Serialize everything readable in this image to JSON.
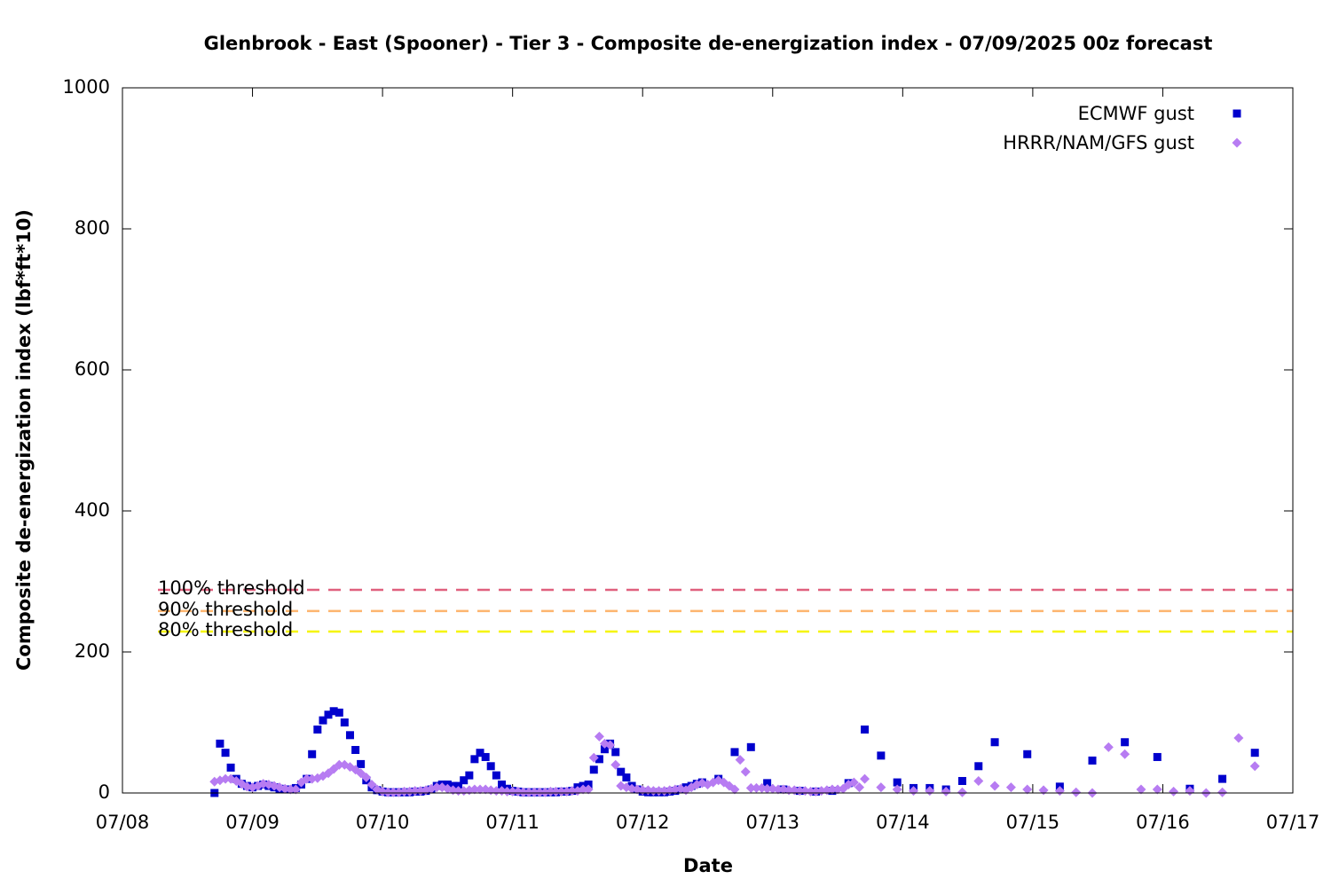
{
  "chart_data": {
    "type": "scatter",
    "title": "Glenbrook - East (Spooner) - Tier 3 - Composite de-energization index - 07/09/2025 00z forecast",
    "x_label": "Date",
    "y_label": "Composite de-energization index (lbf*ft*10)",
    "xlim": [
      8,
      17
    ],
    "xticks": [
      {
        "value": 8,
        "label": "07/08"
      },
      {
        "value": 9,
        "label": "07/09"
      },
      {
        "value": 10,
        "label": "07/10"
      },
      {
        "value": 11,
        "label": "07/11"
      },
      {
        "value": 12,
        "label": "07/12"
      },
      {
        "value": 13,
        "label": "07/13"
      },
      {
        "value": 14,
        "label": "07/14"
      },
      {
        "value": 15,
        "label": "07/15"
      },
      {
        "value": 16,
        "label": "07/16"
      },
      {
        "value": 17,
        "label": "07/17"
      }
    ],
    "ylim": [
      0,
      1000
    ],
    "yticks": [
      0,
      200,
      400,
      600,
      800,
      1000
    ],
    "legend": "upper right",
    "thresholds": [
      {
        "label": "100% threshold",
        "value": 288,
        "color": "#e0607e"
      },
      {
        "label": "90% threshold",
        "value": 258,
        "color": "#fdb56f"
      },
      {
        "label": "80% threshold",
        "value": 229,
        "color": "#f5f500"
      }
    ],
    "series": [
      {
        "name": "ECMWF gust",
        "color": "#0000cd",
        "marker": "square",
        "x": [
          8.708,
          8.75,
          8.792,
          8.833,
          8.875,
          8.917,
          8.958,
          9,
          9.042,
          9.083,
          9.125,
          9.167,
          9.208,
          9.25,
          9.292,
          9.333,
          9.375,
          9.417,
          9.458,
          9.5,
          9.542,
          9.583,
          9.625,
          9.667,
          9.708,
          9.75,
          9.792,
          9.833,
          9.875,
          9.917,
          9.958,
          10,
          10.042,
          10.083,
          10.125,
          10.167,
          10.208,
          10.25,
          10.292,
          10.333,
          10.375,
          10.417,
          10.458,
          10.5,
          10.542,
          10.583,
          10.625,
          10.667,
          10.708,
          10.75,
          10.792,
          10.833,
          10.875,
          10.917,
          10.958,
          11,
          11.042,
          11.083,
          11.125,
          11.167,
          11.208,
          11.25,
          11.292,
          11.333,
          11.375,
          11.417,
          11.458,
          11.5,
          11.542,
          11.583,
          11.625,
          11.667,
          11.708,
          11.75,
          11.792,
          11.833,
          11.875,
          11.917,
          11.958,
          12,
          12.042,
          12.083,
          12.125,
          12.167,
          12.208,
          12.25,
          12.292,
          12.333,
          12.375,
          12.417,
          12.458,
          12.583,
          12.708,
          12.833,
          12.958,
          13.083,
          13.208,
          13.333,
          13.458,
          13.583,
          13.708,
          13.833,
          13.958,
          14.083,
          14.208,
          14.333,
          14.458,
          14.583,
          14.708,
          14.958,
          15.208,
          15.458,
          15.708,
          15.958,
          16.208,
          16.458,
          16.708
        ],
        "values": [
          0,
          70,
          57,
          36,
          20,
          13,
          10,
          8,
          10,
          12,
          10,
          8,
          6,
          5,
          5,
          7,
          12,
          20,
          55,
          90,
          103,
          111,
          116,
          114,
          100,
          82,
          61,
          41,
          18,
          8,
          4,
          2,
          1,
          1,
          1,
          1,
          1,
          2,
          2,
          3,
          5,
          10,
          12,
          12,
          10,
          10,
          18,
          25,
          48,
          57,
          51,
          38,
          25,
          12,
          6,
          3,
          2,
          1,
          1,
          1,
          1,
          1,
          1,
          1,
          2,
          2,
          3,
          8,
          10,
          12,
          33,
          48,
          62,
          70,
          58,
          30,
          22,
          10,
          5,
          2,
          1,
          1,
          1,
          1,
          2,
          3,
          5,
          8,
          10,
          13,
          15,
          20,
          58,
          65,
          14,
          5,
          3,
          2,
          3,
          14,
          90,
          53,
          15,
          7,
          7,
          5,
          17,
          38,
          72,
          55,
          9,
          46,
          72,
          51,
          6,
          20,
          57
        ]
      },
      {
        "name": "HRRR/NAM/GFS gust",
        "color": "#b77cf2",
        "marker": "diamond",
        "x": [
          8.708,
          8.75,
          8.792,
          8.833,
          8.875,
          8.917,
          8.958,
          9,
          9.042,
          9.083,
          9.125,
          9.167,
          9.208,
          9.25,
          9.292,
          9.333,
          9.375,
          9.417,
          9.458,
          9.5,
          9.542,
          9.583,
          9.625,
          9.667,
          9.708,
          9.75,
          9.792,
          9.833,
          9.875,
          9.917,
          9.958,
          10,
          10.042,
          10.083,
          10.125,
          10.167,
          10.208,
          10.25,
          10.292,
          10.333,
          10.375,
          10.417,
          10.458,
          10.5,
          10.542,
          10.583,
          10.625,
          10.667,
          10.708,
          10.75,
          10.792,
          10.833,
          10.875,
          10.917,
          10.958,
          11,
          11.042,
          11.083,
          11.125,
          11.167,
          11.208,
          11.25,
          11.292,
          11.333,
          11.375,
          11.417,
          11.458,
          11.5,
          11.542,
          11.583,
          11.625,
          11.667,
          11.708,
          11.75,
          11.792,
          11.833,
          11.875,
          11.917,
          11.958,
          12,
          12.042,
          12.083,
          12.125,
          12.167,
          12.208,
          12.25,
          12.292,
          12.333,
          12.375,
          12.417,
          12.458,
          12.5,
          12.542,
          12.583,
          12.625,
          12.667,
          12.708,
          12.75,
          12.792,
          12.833,
          12.875,
          12.917,
          12.958,
          13,
          13.042,
          13.083,
          13.125,
          13.167,
          13.208,
          13.25,
          13.292,
          13.333,
          13.375,
          13.417,
          13.458,
          13.5,
          13.542,
          13.583,
          13.625,
          13.667,
          13.708,
          13.833,
          13.958,
          14.083,
          14.208,
          14.333,
          14.458,
          14.583,
          14.708,
          14.833,
          14.958,
          15.083,
          15.208,
          15.333,
          15.458,
          15.583,
          15.708,
          15.833,
          15.958,
          16.083,
          16.208,
          16.333,
          16.458,
          16.583,
          16.708
        ],
        "values": [
          16,
          18,
          20,
          20,
          17,
          13,
          9,
          8,
          10,
          13,
          12,
          10,
          8,
          6,
          5,
          5,
          15,
          20,
          20,
          21,
          24,
          28,
          34,
          40,
          40,
          37,
          33,
          28,
          22,
          12,
          5,
          2,
          1,
          1,
          1,
          2,
          2,
          3,
          3,
          4,
          6,
          8,
          8,
          6,
          4,
          3,
          3,
          4,
          5,
          5,
          5,
          4,
          3,
          3,
          2,
          2,
          2,
          1,
          1,
          1,
          1,
          1,
          2,
          2,
          2,
          2,
          3,
          3,
          5,
          5,
          50,
          80,
          70,
          68,
          40,
          10,
          8,
          6,
          5,
          4,
          4,
          3,
          3,
          3,
          4,
          5,
          6,
          4,
          8,
          12,
          14,
          12,
          15,
          18,
          15,
          10,
          5,
          47,
          30,
          7,
          7,
          7,
          6,
          6,
          5,
          5,
          4,
          4,
          3,
          3,
          2,
          2,
          3,
          4,
          5,
          5,
          6,
          12,
          15,
          8,
          20,
          8,
          5,
          3,
          3,
          2,
          1,
          17,
          10,
          8,
          5,
          4,
          3,
          1,
          0,
          65,
          55,
          5,
          5,
          2,
          3,
          0,
          1,
          78,
          38
        ]
      }
    ]
  }
}
